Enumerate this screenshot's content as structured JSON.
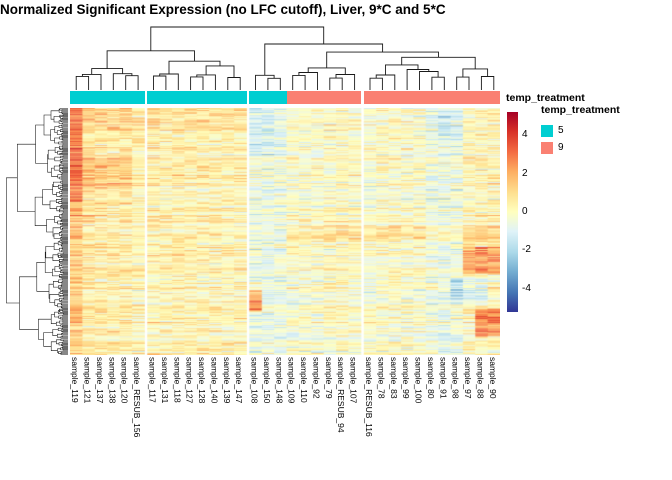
{
  "title": "Normalized Significant Expression (no LFC cutoff), Liver, 9*C and 5*C",
  "annotation_track_label": "temp_treatment",
  "legend": {
    "title": "temp_treatment",
    "items": [
      {
        "label": "5",
        "color": "#00CED1"
      },
      {
        "label": "9",
        "color": "#FA8072"
      }
    ]
  },
  "colorbar": {
    "ticks": [
      "4",
      "2",
      "0",
      "-2",
      "-4"
    ]
  },
  "chart_data": {
    "type": "heatmap",
    "title": "Normalized Significant Expression (no LFC cutoff), Liver, 9*C and 5*C",
    "columns": [
      "sample_119",
      "sample_121",
      "sample_137",
      "sample_138",
      "sample_120",
      "sample_RESUB_156",
      "sample_117",
      "sample_131",
      "sample_118",
      "sample_127",
      "sample_128",
      "sample_140",
      "sample_139",
      "sample_147",
      "sample_108",
      "sample_150",
      "sample_148",
      "sample_109",
      "sample_110",
      "sample_92",
      "sample_79",
      "sample_RESUB_94",
      "sample_107",
      "sample_RESUB_116",
      "sample_78",
      "sample_83",
      "sample_99",
      "sample_100",
      "sample_80",
      "sample_91",
      "sample_98",
      "sample_97",
      "sample_88",
      "sample_90"
    ],
    "column_annotation": {
      "name": "temp_treatment",
      "values": [
        "5",
        "5",
        "5",
        "5",
        "5",
        "5",
        "5",
        "5",
        "5",
        "5",
        "5",
        "5",
        "5",
        "5",
        "5",
        "5",
        "5",
        "9",
        "9",
        "9",
        "9",
        "9",
        "9",
        "9",
        "9",
        "9",
        "9",
        "9",
        "9",
        "9",
        "9",
        "9",
        "9",
        "9"
      ]
    },
    "annotation_colors": {
      "5": "#00CED1",
      "9": "#FA8072"
    },
    "column_groups": [
      [
        0,
        5
      ],
      [
        6,
        13
      ],
      [
        14,
        22
      ],
      [
        23,
        33
      ]
    ],
    "column_tree": [
      [
        [
          0,
          5
        ],
        [
          6,
          13
        ]
      ],
      [
        [
          14,
          16
        ],
        [
          [
            17,
            22
          ],
          [
            23,
            33
          ]
        ]
      ]
    ],
    "row_labels_shown": false,
    "legend_ticks": [
      4,
      2,
      0,
      -2,
      -4
    ],
    "value_range": [
      -5.2,
      5.2
    ],
    "colormap_stops": [
      [
        -5.2,
        "#313695"
      ],
      [
        -4.2,
        "#4575b4"
      ],
      [
        -3.1,
        "#74add1"
      ],
      [
        -2.1,
        "#abd9e9"
      ],
      [
        -1.0,
        "#e0f3f8"
      ],
      [
        0,
        "#ffffbf"
      ],
      [
        1.0,
        "#fee090"
      ],
      [
        2.1,
        "#fdae61"
      ],
      [
        3.1,
        "#f46d43"
      ],
      [
        4.2,
        "#d73027"
      ],
      [
        5.2,
        "#a50026"
      ]
    ],
    "render_approximation": {
      "note": "individual cell values are too dense to read from the pixels; approximated procedurally",
      "seed": 11,
      "n_rows": 240,
      "noise": 1.4,
      "row_streak": 0.9,
      "col_bias": [
        1.5,
        0.75,
        0.7,
        0.55,
        0.6,
        0.35,
        0.45,
        0.35,
        0.45,
        0.4,
        0.45,
        0.35,
        0.3,
        0.35,
        -0.55,
        -0.6,
        -0.5,
        -0.1,
        -0.05,
        -0.15,
        0.05,
        0.15,
        -0.05,
        -0.15,
        0,
        0.05,
        -0.1,
        -0.05,
        -0.45,
        -0.7,
        -0.5,
        0.25,
        0.3,
        0.3
      ],
      "blocks": [
        {
          "rows": [
            0,
            90
          ],
          "cols": [
            0,
            0
          ],
          "delta": 1.5
        },
        {
          "rows": [
            0,
            21
          ],
          "cols": [
            1,
            13
          ],
          "delta": 0.5
        },
        {
          "rows": [
            45,
            78
          ],
          "cols": [
            1,
            4
          ],
          "delta": 0.7
        },
        {
          "rows": [
            0,
            45
          ],
          "cols": [
            14,
            16
          ],
          "delta": -0.5
        },
        {
          "rows": [
            177,
            197
          ],
          "cols": [
            14,
            14
          ],
          "delta": 3.0
        },
        {
          "rows": [
            114,
            129
          ],
          "cols": [
            17,
            33
          ],
          "delta": 0.9
        },
        {
          "rows": [
            135,
            160
          ],
          "cols": [
            31,
            33
          ],
          "delta": 2.0
        },
        {
          "rows": [
            165,
            189
          ],
          "cols": [
            30,
            32
          ],
          "delta": -1.1
        },
        {
          "rows": [
            195,
            221
          ],
          "cols": [
            32,
            33
          ],
          "delta": 2.4
        },
        {
          "rows": [
            0,
            30
          ],
          "cols": [
            28,
            30
          ],
          "delta": -0.5
        }
      ]
    }
  }
}
